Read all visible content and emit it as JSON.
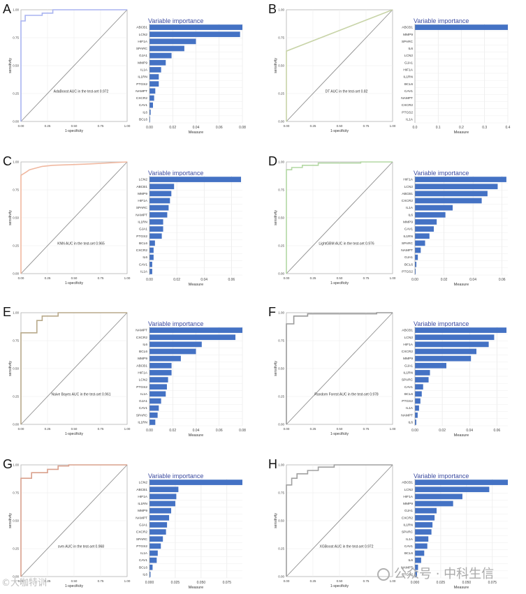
{
  "figure": {
    "importance_title": "Variable importance",
    "roc_xlabel": "1-specificity",
    "roc_ylabel": "sensitivity",
    "imp_xlabel": "Measure"
  },
  "colors": {
    "bar": "#4472c4",
    "diagonal": "#8c8c8c",
    "title": "#3b4ba0",
    "frame": "#b3b3b3"
  },
  "watermark": {
    "left": "©大咖特训",
    "right": "公众号 · 中科生信"
  },
  "chart_data": [
    {
      "panel": "A",
      "type": "line",
      "roc_color": "#a9b4f0",
      "caption": "AdaBoost AUC in the test-set 0.972",
      "roc_x": [
        0,
        0,
        0.04,
        0.04,
        0.2,
        0.2,
        0.3,
        0.3,
        1
      ],
      "roc_y": [
        0,
        0.9,
        0.9,
        0.95,
        0.95,
        0.97,
        0.97,
        1,
        1
      ],
      "xticks": [
        "0.00",
        "0.25",
        "0.50",
        "0.75",
        "1.00"
      ],
      "yticks": [
        "0.00",
        "0.25",
        "0.50",
        "0.75",
        "1.00"
      ],
      "importance": {
        "type": "bar",
        "categories": [
          "ABCB1",
          "LCN2",
          "HIF1A",
          "SPARC",
          "GJA1",
          "MMP9",
          "IL1A",
          "IL1RN",
          "PTGS2",
          "NAMPT",
          "CXCR2",
          "CAV1",
          "IL6",
          "BCL6"
        ],
        "values": [
          0.08,
          0.078,
          0.04,
          0.03,
          0.019,
          0.014,
          0.01,
          0.008,
          0.008,
          0.005,
          0.004,
          0.003,
          0.001,
          0.0005
        ],
        "xlim": [
          0,
          0.08
        ],
        "xticks": [
          "0.00",
          "0.02",
          "0.04",
          "0.06",
          "0.08"
        ]
      }
    },
    {
      "panel": "B",
      "type": "line",
      "roc_color": "#c8d4a8",
      "caption": "DT AUC in the test-set 0.82",
      "roc_x": [
        0,
        0,
        1
      ],
      "roc_y": [
        0,
        0.63,
        1
      ],
      "xticks": [
        "0.00",
        "0.25",
        "0.50",
        "0.75",
        "1.00"
      ],
      "yticks": [
        "0.00",
        "0.25",
        "0.50",
        "0.75",
        "1.00"
      ],
      "importance": {
        "type": "bar",
        "categories": [
          "ABCB1",
          "MMP9",
          "SPARC",
          "IL6",
          "LCN2",
          "GJA1",
          "HIF1A",
          "IL1RN",
          "BCL6",
          "CAV1",
          "NAMPT",
          "CXCR2",
          "PTGS2",
          "IL1A"
        ],
        "values": [
          0.4,
          0,
          0,
          0,
          0,
          0,
          0,
          0,
          0,
          0,
          0,
          0,
          0,
          0
        ],
        "xlim": [
          0,
          0.4
        ],
        "xticks": [
          "0.0",
          "0.1",
          "0.2",
          "0.3",
          "0.4"
        ]
      }
    },
    {
      "panel": "C",
      "type": "line",
      "roc_color": "#f0b8a0",
      "caption": "KNN AUC in the test-set 0.965",
      "roc_x": [
        0,
        0,
        0.05,
        0.08,
        0.2,
        0.3,
        0.6,
        1
      ],
      "roc_y": [
        0,
        0.88,
        0.91,
        0.93,
        0.96,
        0.97,
        0.98,
        1
      ],
      "xticks": [
        "0.00",
        "0.25",
        "0.50",
        "0.75",
        "1.00"
      ],
      "yticks": [
        "0.00",
        "0.25",
        "0.50",
        "0.75",
        "1.00"
      ],
      "importance": {
        "type": "bar",
        "categories": [
          "LCN2",
          "ABCB1",
          "MMP9",
          "HIF1A",
          "SPARC",
          "NAMPT",
          "IL1RN",
          "GJA1",
          "PTGS2",
          "BCL6",
          "CXCR2",
          "IL6",
          "CAV1",
          "IL1A"
        ],
        "values": [
          0.067,
          0.018,
          0.016,
          0.015,
          0.014,
          0.013,
          0.01,
          0.01,
          0.009,
          0.004,
          0.003,
          0.003,
          0.002,
          0.002
        ],
        "xlim": [
          0,
          0.068
        ],
        "xticks": [
          "0.00",
          "0.02",
          "0.04",
          "0.06"
        ]
      }
    },
    {
      "panel": "D",
      "type": "line",
      "roc_color": "#b4d8a4",
      "caption": "LightGBM AUC in the test-set 0.976",
      "roc_x": [
        0,
        0,
        0.05,
        0.05,
        0.15,
        0.15,
        0.3,
        0.3,
        0.7,
        0.7,
        1
      ],
      "roc_y": [
        0,
        0.93,
        0.93,
        0.95,
        0.95,
        0.97,
        0.97,
        0.99,
        0.99,
        1,
        1
      ],
      "xticks": [
        "0.00",
        "0.25",
        "0.50",
        "0.75",
        "1.00"
      ],
      "yticks": [
        "0.00",
        "0.25",
        "0.50",
        "0.75",
        "1.00"
      ],
      "importance": {
        "type": "bar",
        "categories": [
          "HIF1A",
          "LCN2",
          "ABCB1",
          "CXCR2",
          "IL1A",
          "IL6",
          "MMP9",
          "CAV1",
          "IL1RN",
          "SPARC",
          "NAMPT",
          "GJA1",
          "BCL6",
          "PTGS2"
        ],
        "values": [
          0.063,
          0.057,
          0.05,
          0.046,
          0.026,
          0.021,
          0.015,
          0.013,
          0.01,
          0.007,
          0.004,
          0.002,
          0.001,
          0.0005
        ],
        "xlim": [
          0,
          0.064
        ],
        "xticks": [
          "0.00",
          "0.02",
          "0.04",
          "0.06"
        ]
      }
    },
    {
      "panel": "E",
      "type": "line",
      "roc_color": "#b8a98a",
      "caption": "Naive Bayes AUC in the test-set 0.961",
      "roc_x": [
        0,
        0,
        0.15,
        0.15,
        0.2,
        0.2,
        0.35,
        0.35,
        1
      ],
      "roc_y": [
        0,
        0.82,
        0.82,
        0.93,
        0.93,
        0.97,
        0.97,
        1,
        1
      ],
      "xticks": [
        "0.00",
        "0.25",
        "0.50",
        "0.75",
        "1.00"
      ],
      "yticks": [
        "0.00",
        "0.25",
        "0.50",
        "0.75",
        "1.00"
      ],
      "importance": {
        "type": "bar",
        "categories": [
          "NAMPT",
          "CXCR2",
          "IL6",
          "BCL6",
          "MMP9",
          "ABCB1",
          "HIF1A",
          "LCN2",
          "PTGS2",
          "IL1A",
          "GJA1",
          "CAV1",
          "SPARC",
          "IL1RN"
        ],
        "values": [
          0.08,
          0.074,
          0.045,
          0.04,
          0.027,
          0.019,
          0.019,
          0.016,
          0.015,
          0.014,
          0.01,
          0.008,
          0.007,
          0.005
        ],
        "xlim": [
          0,
          0.08
        ],
        "xticks": [
          "0.00",
          "0.02",
          "0.04",
          "0.06",
          "0.08"
        ]
      }
    },
    {
      "panel": "F",
      "type": "line",
      "roc_color": "#9a9a9a",
      "caption": "Random Forest AUC in the test-set 0.978",
      "roc_x": [
        0,
        0,
        0.07,
        0.07,
        0.2,
        0.2,
        0.85,
        0.85,
        1
      ],
      "roc_y": [
        0,
        0.9,
        0.9,
        0.97,
        0.97,
        0.99,
        0.99,
        1,
        1
      ],
      "xticks": [
        "0.00",
        "0.25",
        "0.50",
        "0.75",
        "1.00"
      ],
      "yticks": [
        "0.00",
        "0.25",
        "0.50",
        "0.75",
        "1.00"
      ],
      "importance": {
        "type": "bar",
        "categories": [
          "ABCB1",
          "LCN2",
          "HIF1A",
          "CXCR2",
          "MMP9",
          "GJA1",
          "IL1RN",
          "SPARC",
          "CAV1",
          "BCL6",
          "PTGS2",
          "IL1A",
          "NAMPT",
          "IL6"
        ],
        "values": [
          0.067,
          0.058,
          0.054,
          0.045,
          0.041,
          0.023,
          0.011,
          0.01,
          0.006,
          0.005,
          0.004,
          0.003,
          0.002,
          0.001
        ],
        "xlim": [
          0,
          0.068
        ],
        "xticks": [
          "0.00",
          "0.02",
          "0.04",
          "0.06"
        ]
      }
    },
    {
      "panel": "G",
      "type": "line",
      "roc_color": "#d9a08c",
      "caption": "svm AUC in the test-set 0.968",
      "roc_x": [
        0,
        0,
        0.1,
        0.1,
        0.25,
        0.25,
        0.35,
        0.35,
        0.45,
        0.45,
        1
      ],
      "roc_y": [
        0,
        0.88,
        0.88,
        0.93,
        0.93,
        0.96,
        0.96,
        0.99,
        0.99,
        1,
        1
      ],
      "xticks": [
        "0.00",
        "0.25",
        "0.50",
        "0.75",
        "1.00"
      ],
      "yticks": [
        "0.00",
        "0.25",
        "0.50",
        "0.75",
        "1.00"
      ],
      "importance": {
        "type": "bar",
        "categories": [
          "LCN2",
          "ABCB1",
          "HIF1A",
          "IL1RN",
          "MMP9",
          "NAMPT",
          "GJA1",
          "CXCR2",
          "SPARC",
          "PTGS2",
          "IL1A",
          "CAV1",
          "BCL6",
          "IL6"
        ],
        "values": [
          0.09,
          0.028,
          0.026,
          0.025,
          0.021,
          0.019,
          0.017,
          0.016,
          0.013,
          0.011,
          0.008,
          0.007,
          0.003,
          0.001
        ],
        "xlim": [
          0,
          0.09
        ],
        "xticks": [
          "0.000",
          "0.025",
          "0.050",
          "0.075"
        ]
      }
    },
    {
      "panel": "H",
      "type": "line",
      "roc_color": "#a0a0a0",
      "caption": "XGBoost AUC in the test-set 0.972",
      "roc_x": [
        0,
        0,
        0.05,
        0.05,
        0.1,
        0.1,
        0.2,
        0.2,
        0.3,
        0.3,
        0.45,
        0.45,
        1
      ],
      "roc_y": [
        0,
        0.82,
        0.82,
        0.88,
        0.88,
        0.92,
        0.92,
        0.95,
        0.95,
        0.98,
        0.98,
        1,
        1
      ],
      "xticks": [
        "0.00",
        "0.25",
        "0.50",
        "0.75",
        "1.00"
      ],
      "yticks": [
        "0.00",
        "0.25",
        "0.50",
        "0.75",
        "1.00"
      ],
      "importance": {
        "type": "bar",
        "categories": [
          "ABCB1",
          "LCN2",
          "HIF1A",
          "MMP9",
          "GJA1",
          "CXCR2",
          "IL1RN",
          "SPARC",
          "IL1A",
          "CAV1",
          "BCL6",
          "IL6",
          "NAMPT",
          "PTGS2"
        ],
        "values": [
          0.09,
          0.072,
          0.046,
          0.037,
          0.021,
          0.019,
          0.017,
          0.016,
          0.013,
          0.012,
          0.009,
          0.006,
          0.003,
          0.002
        ],
        "xlim": [
          0,
          0.09
        ],
        "xticks": [
          "0.000",
          "0.025",
          "0.050",
          "0.075"
        ]
      }
    }
  ]
}
